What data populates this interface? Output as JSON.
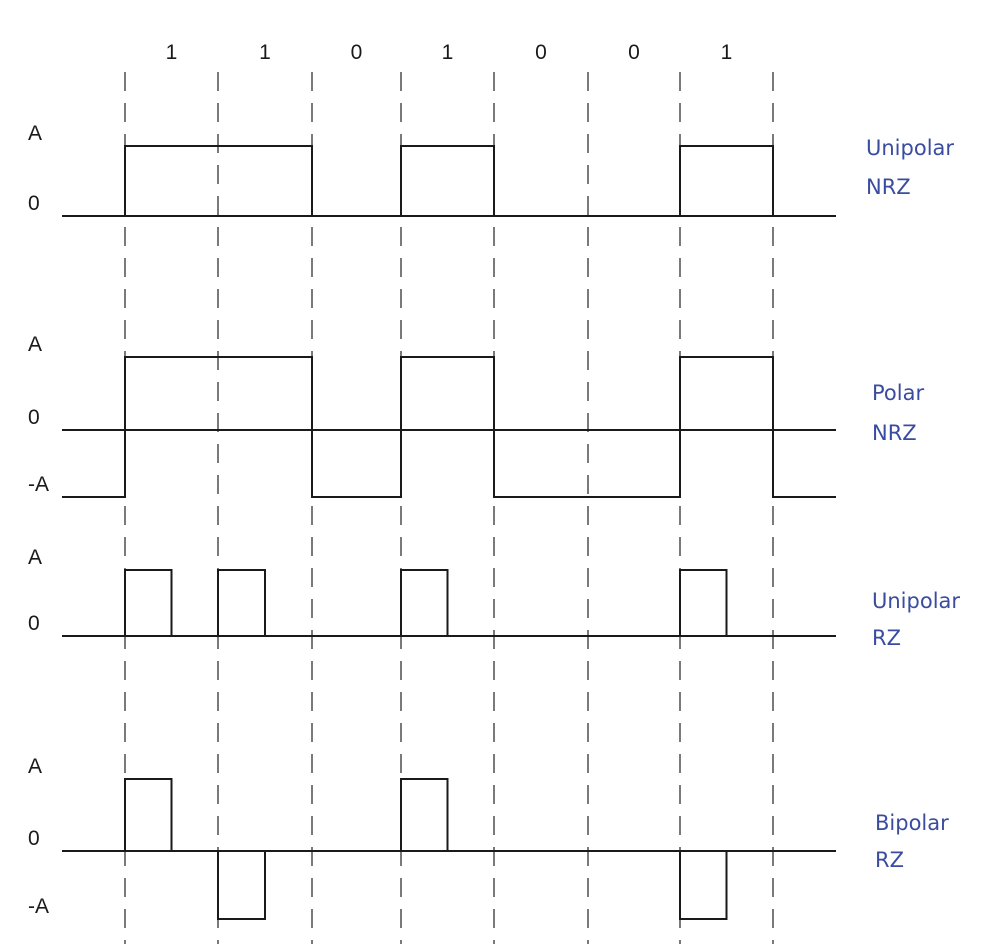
{
  "bits": [
    "1",
    "1",
    "0",
    "1",
    "0",
    "0",
    "1"
  ],
  "waveforms": [
    {
      "id": "unipolar-nrz",
      "name_lines": [
        "Unipolar",
        "NRZ"
      ],
      "levels": [
        "A",
        "0"
      ],
      "values": [
        1,
        1,
        0,
        1,
        0,
        0,
        1
      ],
      "return_to_zero": false
    },
    {
      "id": "polar-nrz",
      "name_lines": [
        "Polar",
        "NRZ"
      ],
      "levels": [
        "A",
        "0",
        "-A"
      ],
      "values": [
        1,
        1,
        -1,
        1,
        -1,
        -1,
        1
      ],
      "return_to_zero": false
    },
    {
      "id": "unipolar-rz",
      "name_lines": [
        "Unipolar",
        "RZ"
      ],
      "levels": [
        "A",
        "0"
      ],
      "values": [
        1,
        1,
        0,
        1,
        0,
        0,
        1
      ],
      "return_to_zero": true
    },
    {
      "id": "bipolar-rz",
      "name_lines": [
        "Bipolar",
        "RZ"
      ],
      "levels": [
        "A",
        "0",
        "-A"
      ],
      "values": [
        1,
        -1,
        0,
        1,
        0,
        0,
        -1
      ],
      "return_to_zero": true
    }
  ],
  "colors": {
    "wave": "#1a1a1a",
    "divider": "#333333",
    "scheme_label": "#3a4ca0"
  }
}
